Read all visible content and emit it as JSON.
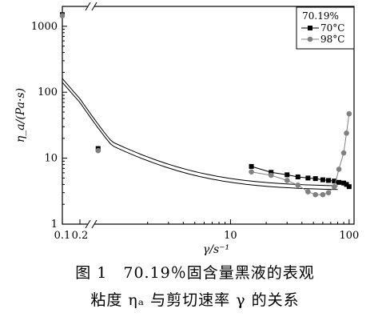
{
  "chart_data": {
    "type": "line",
    "ylabel": "η_a/(Pa·s)",
    "xlabel": "γ/s⁻¹",
    "y_scale": "log",
    "x_scale": "log (broken axis)",
    "ylim": [
      1,
      2000
    ],
    "xlim": [
      0.1,
      110
    ],
    "y_ticks": [
      "1",
      "10",
      "100",
      "1000"
    ],
    "x_ticks": [
      "0.1",
      "0.2",
      "10",
      "100"
    ],
    "legend": {
      "title": "70.19%",
      "placement": "top-right"
    },
    "series": [
      {
        "name": "70°C",
        "marker": "square",
        "color": "#000000",
        "x": [
          0.1,
          0.5,
          15,
          22,
          30,
          37,
          45,
          52,
          60,
          67,
          75,
          82,
          90,
          95,
          100
        ],
        "y": [
          1500,
          14,
          7.5,
          6.1,
          5.6,
          5.2,
          5.0,
          4.9,
          4.7,
          4.6,
          4.5,
          4.3,
          4.2,
          4.0,
          3.7
        ]
      },
      {
        "name": "98°C",
        "marker": "circle",
        "color": "#808080",
        "x": [
          0.1,
          0.5,
          15,
          22,
          30,
          37,
          45,
          52,
          60,
          67,
          75,
          82,
          90,
          95,
          100
        ],
        "y": [
          1450,
          13,
          6.2,
          5.5,
          4.6,
          3.9,
          3.1,
          2.8,
          2.8,
          3.0,
          3.7,
          6.8,
          12,
          24,
          47
        ]
      }
    ]
  },
  "caption": {
    "line1": "图 1　70.19％固含量黑液的表观",
    "line2": "粘度 ηₐ 与剪切速率 γ 的关系"
  }
}
